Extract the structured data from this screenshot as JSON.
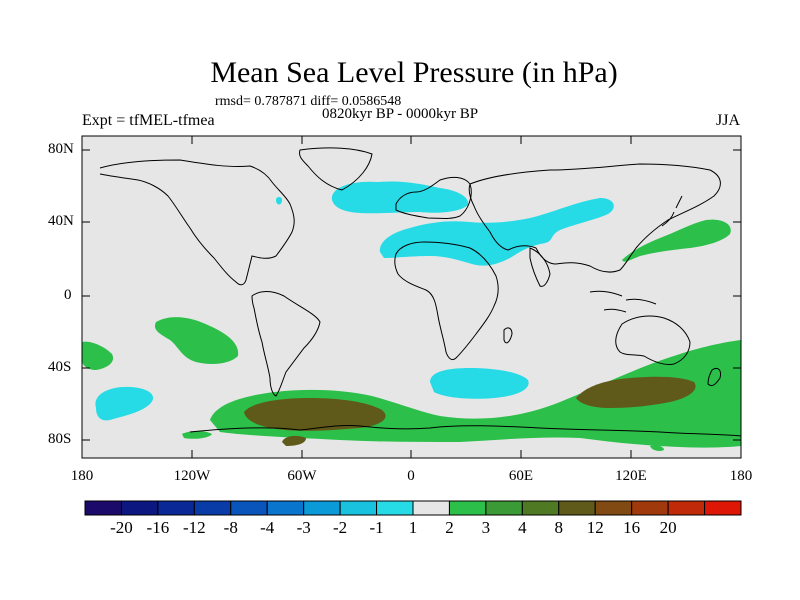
{
  "title": "Mean Sea Level Pressure (in hPa)",
  "stats_line": "rmsd= 0.787871 diff= 0.0586548",
  "period": "0820kyr BP - 0000kyr BP",
  "experiment": "Expt = tfMEL-tfmea",
  "season": "JJA",
  "lat_labels": [
    "80N",
    "40N",
    "0",
    "40S",
    "80S"
  ],
  "lon_labels": [
    "180",
    "120W",
    "60W",
    "0",
    "60E",
    "120E",
    "180"
  ],
  "colorbar": {
    "labels": [
      "-20",
      "-16",
      "-12",
      "-8",
      "-4",
      "-3",
      "-2",
      "-1",
      "1",
      "2",
      "3",
      "4",
      "8",
      "12",
      "16",
      "20"
    ],
    "colors": [
      "#1b0a6a",
      "#0d1780",
      "#0a2896",
      "#0a3ca8",
      "#0a55bb",
      "#0a75cc",
      "#0a9ad8",
      "#19c3e0",
      "#27dbe6",
      "#e6e6e6",
      "#2cc04a",
      "#3b9a35",
      "#4f7a23",
      "#5f5a1a",
      "#804a12",
      "#a03a0c",
      "#c02a08",
      "#dd1605"
    ]
  },
  "colors": {
    "background": "#e6e6e6",
    "negative_anomaly": "#27dbe6",
    "positive_low": "#2cc04a",
    "positive_mid": "#5f5a1a",
    "coast": "#000000"
  }
}
